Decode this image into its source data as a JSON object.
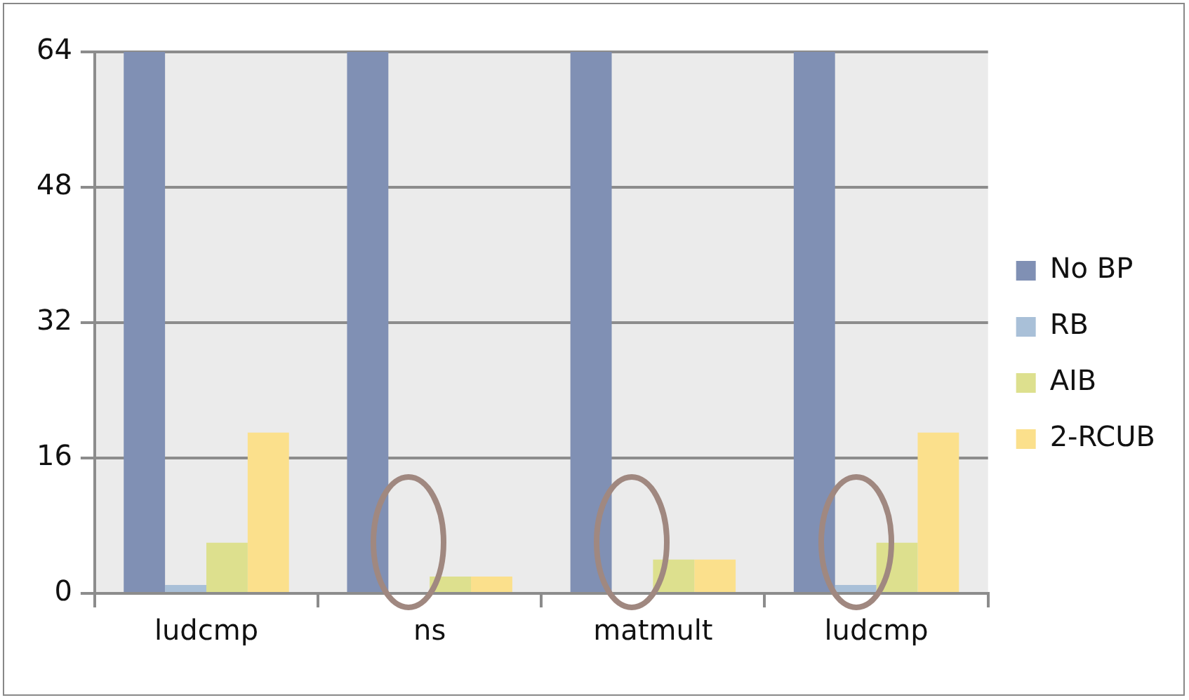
{
  "chart_data": {
    "type": "bar",
    "categories": [
      "ludcmp",
      "ns",
      "matmult",
      "ludcmp"
    ],
    "series": [
      {
        "name": "No BP",
        "color": "#8090b4",
        "values": [
          64,
          64,
          64,
          64
        ]
      },
      {
        "name": "RB",
        "color": "#a9c0d8",
        "values": [
          1,
          0,
          0,
          1
        ]
      },
      {
        "name": "AIB",
        "color": "#dde08e",
        "values": [
          6,
          2,
          4,
          6
        ]
      },
      {
        "name": "2-RCUB",
        "color": "#fbe08c",
        "values": [
          19,
          2,
          4,
          19
        ]
      }
    ],
    "ylim": [
      0,
      64
    ],
    "yticks": [
      0,
      16,
      32,
      48,
      64
    ],
    "grid": "y",
    "legend": "right"
  }
}
